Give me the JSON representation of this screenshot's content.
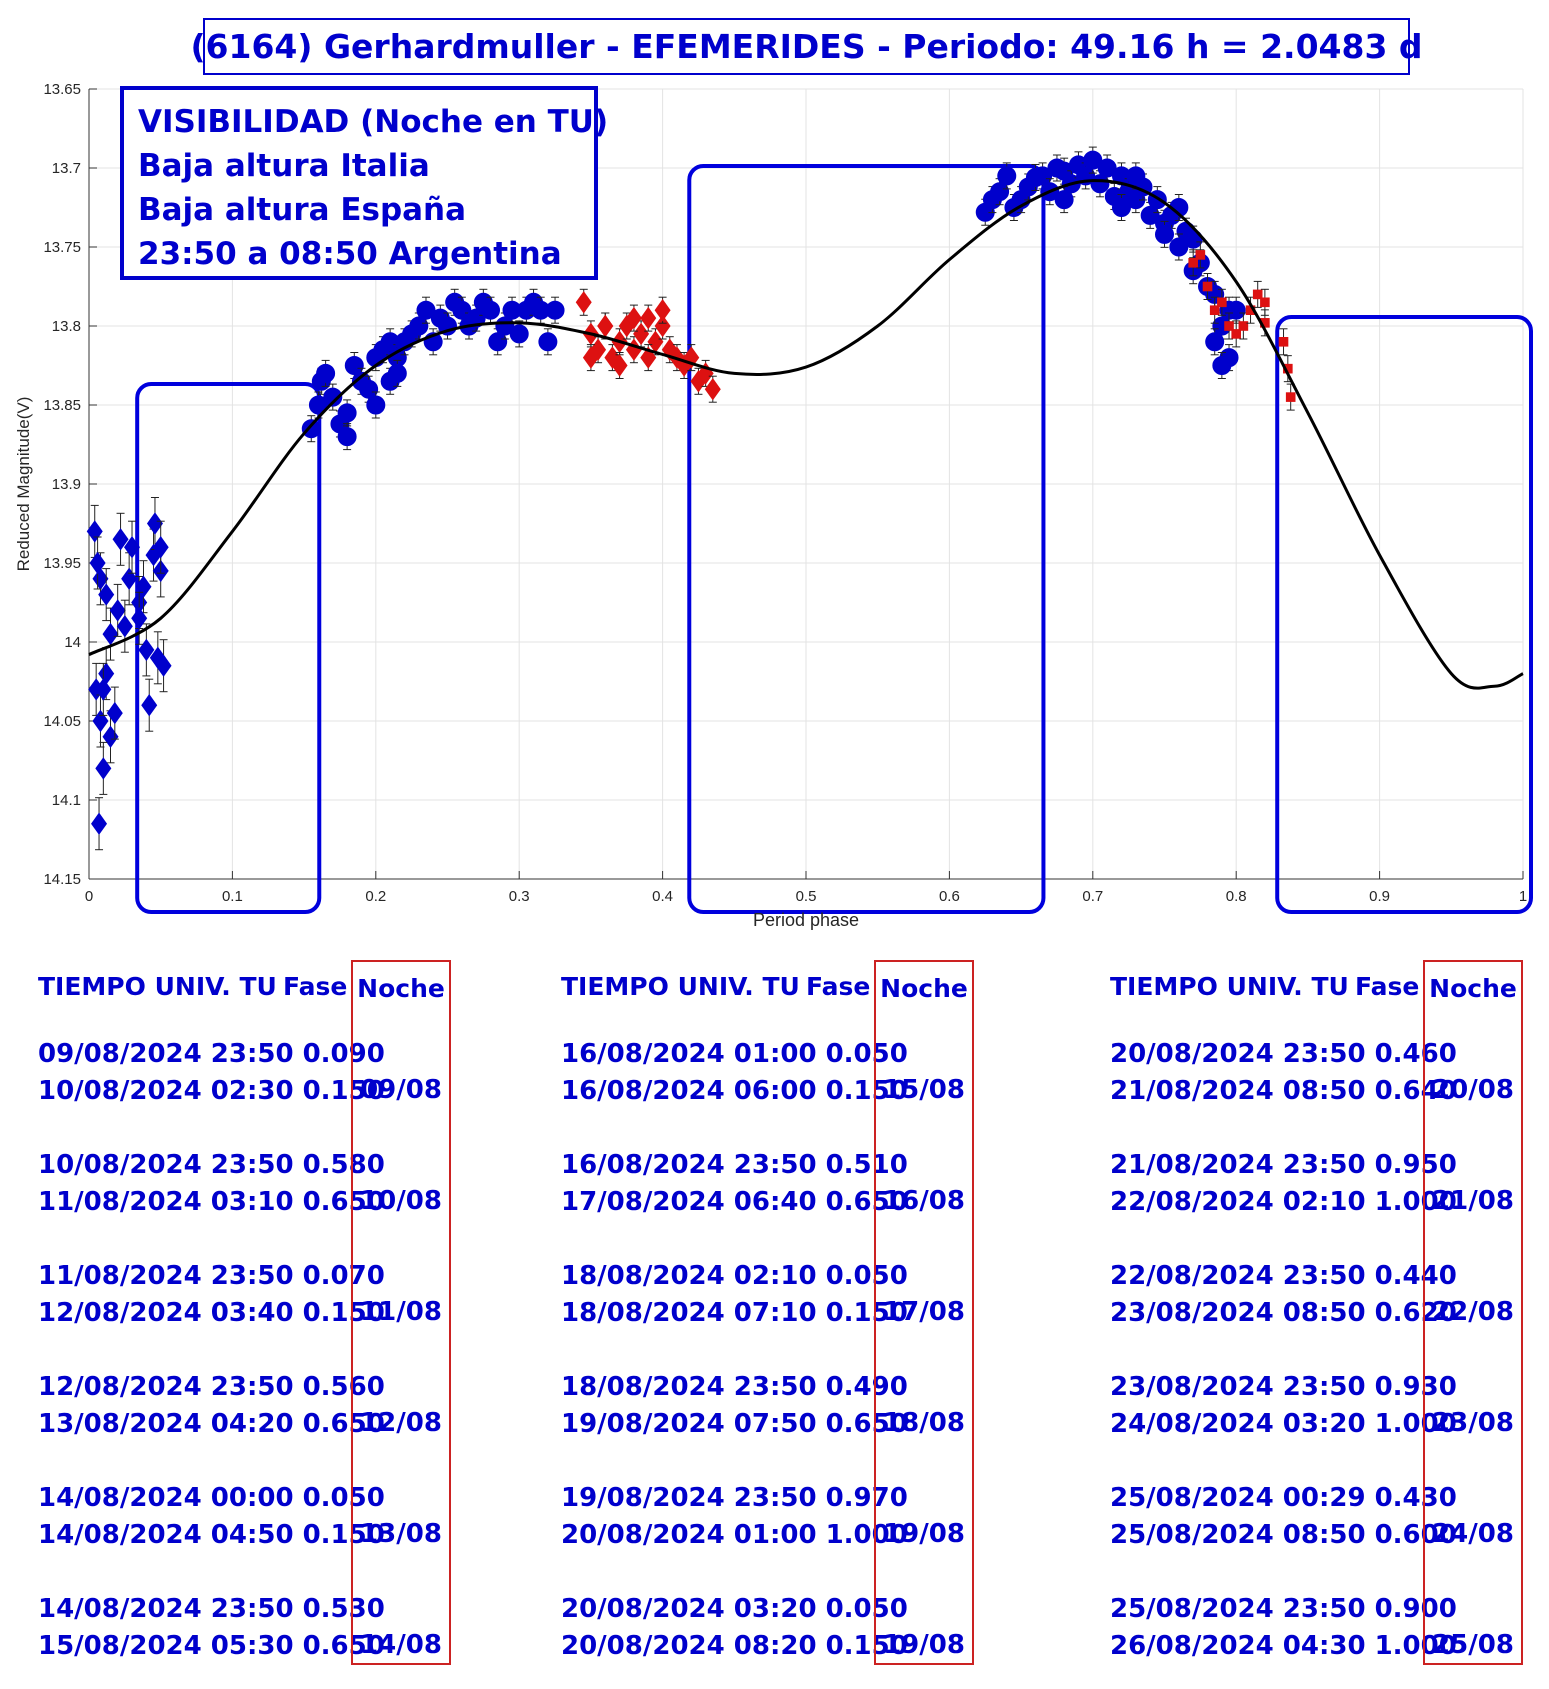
{
  "title": "(6164) Gerhardmuller - EFEMERIDES - Periodo: 49.16 h = 2.0483 d",
  "visibility": {
    "lines": [
      "VISIBILIDAD (Noche en TU)",
      "Baja altura Italia",
      "Baja altura España",
      "23:50 a 08:50 Argentina"
    ]
  },
  "chart_data": {
    "type": "scatter",
    "title": "(6164) Gerhardmuller - EFEMERIDES - Periodo: 49.16 h = 2.0483 d",
    "xlabel": "Period phase",
    "ylabel": "Reduced Magnitude(V)",
    "xlim": [
      0,
      1
    ],
    "ylim": [
      13.65,
      14.15
    ],
    "y_reversed": true,
    "grid": true,
    "x_ticks": [
      0,
      0.1,
      0.2,
      0.3,
      0.4,
      0.5,
      0.6,
      0.7,
      0.8,
      0.9,
      1
    ],
    "x_tick_labels": [
      "0",
      "0.1",
      "0.2",
      "0.3",
      "0.4",
      "0.5",
      "0.6",
      "0.7",
      "0.8",
      "0.9",
      "1"
    ],
    "y_ticks": [
      13.65,
      13.7,
      13.75,
      13.8,
      13.85,
      13.9,
      13.95,
      14.0,
      14.05,
      14.1,
      14.15
    ],
    "y_tick_labels": [
      "13.65",
      "13.7",
      "13.75",
      "13.8",
      "13.85",
      "13.9",
      "13.95",
      "14",
      "14.05",
      "14.1",
      "14.15"
    ],
    "fit_curve": {
      "color": "#000000",
      "points": [
        [
          0.0,
          14.008
        ],
        [
          0.05,
          13.985
        ],
        [
          0.1,
          13.93
        ],
        [
          0.15,
          13.868
        ],
        [
          0.2,
          13.825
        ],
        [
          0.25,
          13.803
        ],
        [
          0.3,
          13.798
        ],
        [
          0.35,
          13.805
        ],
        [
          0.4,
          13.818
        ],
        [
          0.45,
          13.83
        ],
        [
          0.5,
          13.826
        ],
        [
          0.55,
          13.8
        ],
        [
          0.6,
          13.758
        ],
        [
          0.65,
          13.724
        ],
        [
          0.7,
          13.708
        ],
        [
          0.75,
          13.722
        ],
        [
          0.8,
          13.772
        ],
        [
          0.85,
          13.855
        ],
        [
          0.9,
          13.945
        ],
        [
          0.95,
          14.02
        ],
        [
          0.98,
          14.028
        ],
        [
          1.0,
          14.02
        ]
      ]
    },
    "series": [
      {
        "marker": "diamond",
        "color": "#0000cc",
        "errorbars": true,
        "points": [
          [
            0.005,
            14.03
          ],
          [
            0.008,
            14.05
          ],
          [
            0.012,
            14.02
          ],
          [
            0.015,
            14.06
          ],
          [
            0.01,
            14.08
          ],
          [
            0.004,
            13.93
          ],
          [
            0.008,
            13.96
          ],
          [
            0.012,
            13.97
          ],
          [
            0.015,
            13.995
          ],
          [
            0.02,
            13.98
          ],
          [
            0.022,
            13.935
          ],
          [
            0.025,
            13.99
          ],
          [
            0.028,
            13.96
          ],
          [
            0.03,
            13.94
          ],
          [
            0.035,
            13.975
          ],
          [
            0.038,
            13.965
          ],
          [
            0.04,
            14.005
          ],
          [
            0.042,
            14.04
          ],
          [
            0.045,
            13.945
          ],
          [
            0.046,
            13.925
          ],
          [
            0.048,
            14.01
          ],
          [
            0.05,
            13.955
          ],
          [
            0.052,
            14.015
          ],
          [
            0.05,
            13.94
          ],
          [
            0.035,
            13.985
          ],
          [
            0.018,
            14.045
          ],
          [
            0.007,
            14.115
          ],
          [
            0.01,
            14.03
          ],
          [
            0.006,
            13.95
          ]
        ]
      },
      {
        "marker": "circle",
        "color": "#0000cc",
        "errorbars": true,
        "points": [
          [
            0.155,
            13.865
          ],
          [
            0.16,
            13.85
          ],
          [
            0.162,
            13.835
          ],
          [
            0.165,
            13.83
          ],
          [
            0.17,
            13.845
          ],
          [
            0.175,
            13.862
          ],
          [
            0.18,
            13.855
          ],
          [
            0.185,
            13.825
          ],
          [
            0.19,
            13.835
          ],
          [
            0.195,
            13.84
          ],
          [
            0.2,
            13.82
          ],
          [
            0.205,
            13.815
          ],
          [
            0.21,
            13.81
          ],
          [
            0.215,
            13.82
          ],
          [
            0.22,
            13.81
          ],
          [
            0.225,
            13.805
          ],
          [
            0.23,
            13.8
          ],
          [
            0.235,
            13.79
          ],
          [
            0.24,
            13.81
          ],
          [
            0.245,
            13.795
          ],
          [
            0.25,
            13.8
          ],
          [
            0.255,
            13.785
          ],
          [
            0.26,
            13.79
          ],
          [
            0.265,
            13.8
          ],
          [
            0.27,
            13.795
          ],
          [
            0.275,
            13.785
          ],
          [
            0.28,
            13.79
          ],
          [
            0.285,
            13.81
          ],
          [
            0.29,
            13.8
          ],
          [
            0.295,
            13.79
          ],
          [
            0.3,
            13.805
          ],
          [
            0.305,
            13.79
          ],
          [
            0.31,
            13.785
          ],
          [
            0.315,
            13.79
          ],
          [
            0.32,
            13.81
          ],
          [
            0.325,
            13.79
          ],
          [
            0.21,
            13.835
          ],
          [
            0.215,
            13.83
          ],
          [
            0.2,
            13.85
          ],
          [
            0.18,
            13.87
          ],
          [
            0.625,
            13.728
          ],
          [
            0.63,
            13.72
          ],
          [
            0.635,
            13.715
          ],
          [
            0.64,
            13.705
          ],
          [
            0.645,
            13.725
          ],
          [
            0.65,
            13.72
          ],
          [
            0.655,
            13.712
          ],
          [
            0.66,
            13.706
          ],
          [
            0.665,
            13.705
          ],
          [
            0.67,
            13.715
          ],
          [
            0.675,
            13.7
          ],
          [
            0.68,
            13.702
          ],
          [
            0.685,
            13.71
          ],
          [
            0.69,
            13.698
          ],
          [
            0.695,
            13.705
          ],
          [
            0.7,
            13.695
          ],
          [
            0.705,
            13.71
          ],
          [
            0.71,
            13.7
          ],
          [
            0.715,
            13.718
          ],
          [
            0.72,
            13.705
          ],
          [
            0.725,
            13.715
          ],
          [
            0.73,
            13.72
          ],
          [
            0.735,
            13.712
          ],
          [
            0.74,
            13.73
          ],
          [
            0.745,
            13.72
          ],
          [
            0.75,
            13.735
          ],
          [
            0.755,
            13.73
          ],
          [
            0.76,
            13.725
          ],
          [
            0.765,
            13.74
          ],
          [
            0.77,
            13.745
          ],
          [
            0.775,
            13.76
          ],
          [
            0.78,
            13.775
          ],
          [
            0.785,
            13.78
          ],
          [
            0.79,
            13.8
          ],
          [
            0.795,
            13.82
          ],
          [
            0.8,
            13.79
          ],
          [
            0.76,
            13.75
          ],
          [
            0.77,
            13.765
          ],
          [
            0.785,
            13.81
          ],
          [
            0.79,
            13.825
          ],
          [
            0.795,
            13.79
          ],
          [
            0.68,
            13.72
          ],
          [
            0.72,
            13.725
          ],
          [
            0.75,
            13.742
          ],
          [
            0.73,
            13.705
          ]
        ]
      },
      {
        "marker": "diamond",
        "color": "#dd1111",
        "errorbars": true,
        "points": [
          [
            0.345,
            13.785
          ],
          [
            0.35,
            13.805
          ],
          [
            0.355,
            13.815
          ],
          [
            0.36,
            13.8
          ],
          [
            0.365,
            13.82
          ],
          [
            0.37,
            13.81
          ],
          [
            0.375,
            13.8
          ],
          [
            0.38,
            13.815
          ],
          [
            0.385,
            13.805
          ],
          [
            0.39,
            13.795
          ],
          [
            0.395,
            13.81
          ],
          [
            0.4,
            13.8
          ],
          [
            0.405,
            13.815
          ],
          [
            0.41,
            13.82
          ],
          [
            0.415,
            13.825
          ],
          [
            0.42,
            13.82
          ],
          [
            0.425,
            13.835
          ],
          [
            0.43,
            13.83
          ],
          [
            0.435,
            13.84
          ],
          [
            0.35,
            13.82
          ],
          [
            0.37,
            13.825
          ],
          [
            0.39,
            13.82
          ],
          [
            0.4,
            13.79
          ],
          [
            0.36,
            13.8
          ],
          [
            0.38,
            13.795
          ]
        ]
      },
      {
        "marker": "square",
        "color": "#dd1111",
        "errorbars": true,
        "points": [
          [
            0.77,
            13.76
          ],
          [
            0.775,
            13.755
          ],
          [
            0.78,
            13.775
          ],
          [
            0.785,
            13.79
          ],
          [
            0.79,
            13.785
          ],
          [
            0.795,
            13.8
          ],
          [
            0.8,
            13.805
          ],
          [
            0.805,
            13.8
          ],
          [
            0.81,
            13.79
          ],
          [
            0.815,
            13.78
          ],
          [
            0.82,
            13.785
          ],
          [
            0.82,
            13.798
          ],
          [
            0.833,
            13.81
          ],
          [
            0.836,
            13.827
          ],
          [
            0.838,
            13.845
          ]
        ]
      }
    ],
    "visibility_windows": [
      [
        0.035,
        0.155
      ],
      [
        0.42,
        0.66
      ],
      [
        0.83,
        1.0
      ]
    ]
  },
  "tables": [
    {
      "header": {
        "tu": "TIEMPO UNIV. TU",
        "fase": "Fase",
        "noche": "Noche"
      },
      "groups": [
        {
          "rows": [
            "09/08/2024  23:50 0.090",
            "10/08/2024  02:30 0.150"
          ],
          "noche": "09/08"
        },
        {
          "rows": [
            "10/08/2024  23:50 0.580",
            "11/08/2024  03:10 0.650"
          ],
          "noche": "10/08"
        },
        {
          "rows": [
            "11/08/2024  23:50 0.070",
            "12/08/2024  03:40 0.150"
          ],
          "noche": "11/08"
        },
        {
          "rows": [
            "12/08/2024  23:50 0.560",
            "13/08/2024  04:20 0.650"
          ],
          "noche": "12/08"
        },
        {
          "rows": [
            "14/08/2024  00:00 0.050",
            "14/08/2024  04:50 0.150"
          ],
          "noche": "13/08"
        },
        {
          "rows": [
            "14/08/2024  23:50 0.530",
            "15/08/2024  05:30 0.650"
          ],
          "noche": "14/08"
        }
      ]
    },
    {
      "header": {
        "tu": "TIEMPO UNIV. TU",
        "fase": "Fase",
        "noche": "Noche"
      },
      "groups": [
        {
          "rows": [
            "16/08/2024  01:00 0.050",
            "16/08/2024  06:00 0.150"
          ],
          "noche": "15/08"
        },
        {
          "rows": [
            "16/08/2024  23:50 0.510",
            "17/08/2024  06:40 0.650"
          ],
          "noche": "16/08"
        },
        {
          "rows": [
            "18/08/2024  02:10 0.050",
            "18/08/2024  07:10 0.150"
          ],
          "noche": "17/08"
        },
        {
          "rows": [
            "18/08/2024  23:50 0.490",
            "19/08/2024  07:50 0.650"
          ],
          "noche": "18/08"
        },
        {
          "rows": [
            "19/08/2024  23:50 0.970",
            "20/08/2024  01:00 1.000"
          ],
          "noche": "19/08"
        },
        {
          "rows": [
            "20/08/2024  03:20 0.050",
            "20/08/2024  08:20 0.150"
          ],
          "noche": "19/08"
        }
      ]
    },
    {
      "header": {
        "tu": "TIEMPO UNIV. TU",
        "fase": "Fase",
        "noche": "Noche"
      },
      "groups": [
        {
          "rows": [
            "20/08/2024  23:50 0.460",
            "21/08/2024  08:50 0.640"
          ],
          "noche": "20/08"
        },
        {
          "rows": [
            "21/08/2024  23:50 0.950",
            "22/08/2024  02:10 1.000"
          ],
          "noche": "21/08"
        },
        {
          "rows": [
            "22/08/2024  23:50 0.440",
            "23/08/2024  08:50 0.620"
          ],
          "noche": "22/08"
        },
        {
          "rows": [
            "23/08/2024  23:50 0.930",
            "24/08/2024  03:20 1.000"
          ],
          "noche": "23/08"
        },
        {
          "rows": [
            "25/08/2024  00:29 0.430",
            "25/08/2024  08:50 0.600"
          ],
          "noche": "24/08"
        },
        {
          "rows": [
            "25/08/2024  23:50 0.900",
            "26/08/2024  04:30 1.000"
          ],
          "noche": "25/08"
        }
      ]
    }
  ]
}
